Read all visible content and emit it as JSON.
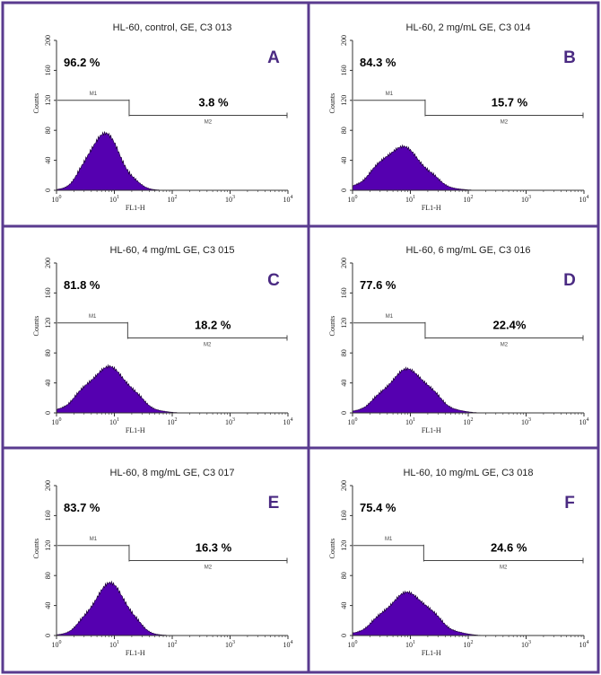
{
  "colors": {
    "border": "#5a3b8f",
    "fill": "#5500b0",
    "letter": "#4a2a82",
    "axis": "#333333"
  },
  "chart_data": [
    {
      "type": "area",
      "letter": "A",
      "title": "HL-60, control, GE, C3 013",
      "xlabel": "FL1-H",
      "ylabel": "Counts",
      "xscale": "log",
      "xlim": [
        1,
        10000
      ],
      "ylim": [
        0,
        200
      ],
      "yticks": [
        "0",
        "40",
        "80",
        "120",
        "160",
        "200"
      ],
      "xticks_base": "10",
      "xticks_exp": [
        "0",
        "1",
        "2",
        "3",
        "4"
      ],
      "gates": [
        {
          "label": "M1",
          "percent": "96.2 %",
          "start": 1,
          "end": 18
        },
        {
          "label": "M2",
          "percent": "3.8 %",
          "start": 18,
          "end": 10000
        }
      ],
      "histogram": {
        "peak_x": 6.5,
        "peak_y": 75,
        "sigma_left": 0.28,
        "sigma_right": 0.3
      }
    },
    {
      "type": "area",
      "letter": "B",
      "title": "HL-60, 2 mg/mL GE, C3 014",
      "xlabel": "FL1-H",
      "ylabel": "Counts",
      "xscale": "log",
      "xlim": [
        1,
        10000
      ],
      "ylim": [
        0,
        200
      ],
      "yticks": [
        "0",
        "40",
        "80",
        "120",
        "160",
        "200"
      ],
      "xticks_base": "10",
      "xticks_exp": [
        "0",
        "1",
        "2",
        "3",
        "4"
      ],
      "gates": [
        {
          "label": "M1",
          "percent": "84.3 %",
          "start": 1,
          "end": 18
        },
        {
          "label": "M2",
          "percent": "15.7 %",
          "start": 18,
          "end": 10000
        }
      ],
      "histogram": {
        "peak_x": 7,
        "peak_y": 57,
        "sigma_left": 0.4,
        "sigma_right": 0.38
      }
    },
    {
      "type": "area",
      "letter": "C",
      "title": "HL-60, 4 mg/mL GE, C3 015",
      "xlabel": "FL1-H",
      "ylabel": "Counts",
      "xscale": "log",
      "xlim": [
        1,
        10000
      ],
      "ylim": [
        0,
        200
      ],
      "yticks": [
        "0",
        "40",
        "80",
        "120",
        "160",
        "200"
      ],
      "xticks_base": "10",
      "xticks_exp": [
        "0",
        "1",
        "2",
        "3",
        "4"
      ],
      "gates": [
        {
          "label": "M1",
          "percent": "81.8 %",
          "start": 1,
          "end": 17
        },
        {
          "label": "M2",
          "percent": "18.2 %",
          "start": 17,
          "end": 10000
        }
      ],
      "histogram": {
        "peak_x": 8,
        "peak_y": 60,
        "sigma_left": 0.4,
        "sigma_right": 0.37
      }
    },
    {
      "type": "area",
      "letter": "D",
      "title": "HL-60, 6 mg/mL GE, C3 016",
      "xlabel": "FL1-H",
      "ylabel": "Counts",
      "xscale": "log",
      "xlim": [
        1,
        10000
      ],
      "ylim": [
        0,
        200
      ],
      "yticks": [
        "0",
        "40",
        "80",
        "120",
        "160",
        "200"
      ],
      "xticks_base": "10",
      "xticks_exp": [
        "0",
        "1",
        "2",
        "3",
        "4"
      ],
      "gates": [
        {
          "label": "M1",
          "percent": "77.6 %",
          "start": 1,
          "end": 18
        },
        {
          "label": "M2",
          "percent": "22.4%",
          "start": 18,
          "end": 10000
        }
      ],
      "histogram": {
        "peak_x": 9,
        "peak_y": 57,
        "sigma_left": 0.38,
        "sigma_right": 0.38
      }
    },
    {
      "type": "area",
      "letter": "E",
      "title": "HL-60, 8 mg/mL GE, C3 017",
      "xlabel": "FL1-H",
      "ylabel": "Counts",
      "xscale": "log",
      "xlim": [
        1,
        10000
      ],
      "ylim": [
        0,
        200
      ],
      "yticks": [
        "0",
        "40",
        "80",
        "120",
        "160",
        "200"
      ],
      "xticks_base": "10",
      "xticks_exp": [
        "0",
        "1",
        "2",
        "3",
        "4"
      ],
      "gates": [
        {
          "label": "M1",
          "percent": "83.7 %",
          "start": 1,
          "end": 18
        },
        {
          "label": "M2",
          "percent": "16.3 %",
          "start": 18,
          "end": 10000
        }
      ],
      "histogram": {
        "peak_x": 8.5,
        "peak_y": 68,
        "sigma_left": 0.32,
        "sigma_right": 0.3
      }
    },
    {
      "type": "area",
      "letter": "F",
      "title": "HL-60, 10 mg/mL GE, C3 018",
      "xlabel": "FL1-H",
      "ylabel": "Counts",
      "xscale": "log",
      "xlim": [
        1,
        10000
      ],
      "ylim": [
        0,
        200
      ],
      "yticks": [
        "0",
        "40",
        "80",
        "120",
        "160",
        "200"
      ],
      "xticks_base": "10",
      "xticks_exp": [
        "0",
        "1",
        "2",
        "3",
        "4"
      ],
      "gates": [
        {
          "label": "M1",
          "percent": "75.4 %",
          "start": 1,
          "end": 17
        },
        {
          "label": "M2",
          "percent": "24.6 %",
          "start": 17,
          "end": 10000
        }
      ],
      "histogram": {
        "peak_x": 9,
        "peak_y": 56,
        "sigma_left": 0.4,
        "sigma_right": 0.4
      }
    }
  ]
}
